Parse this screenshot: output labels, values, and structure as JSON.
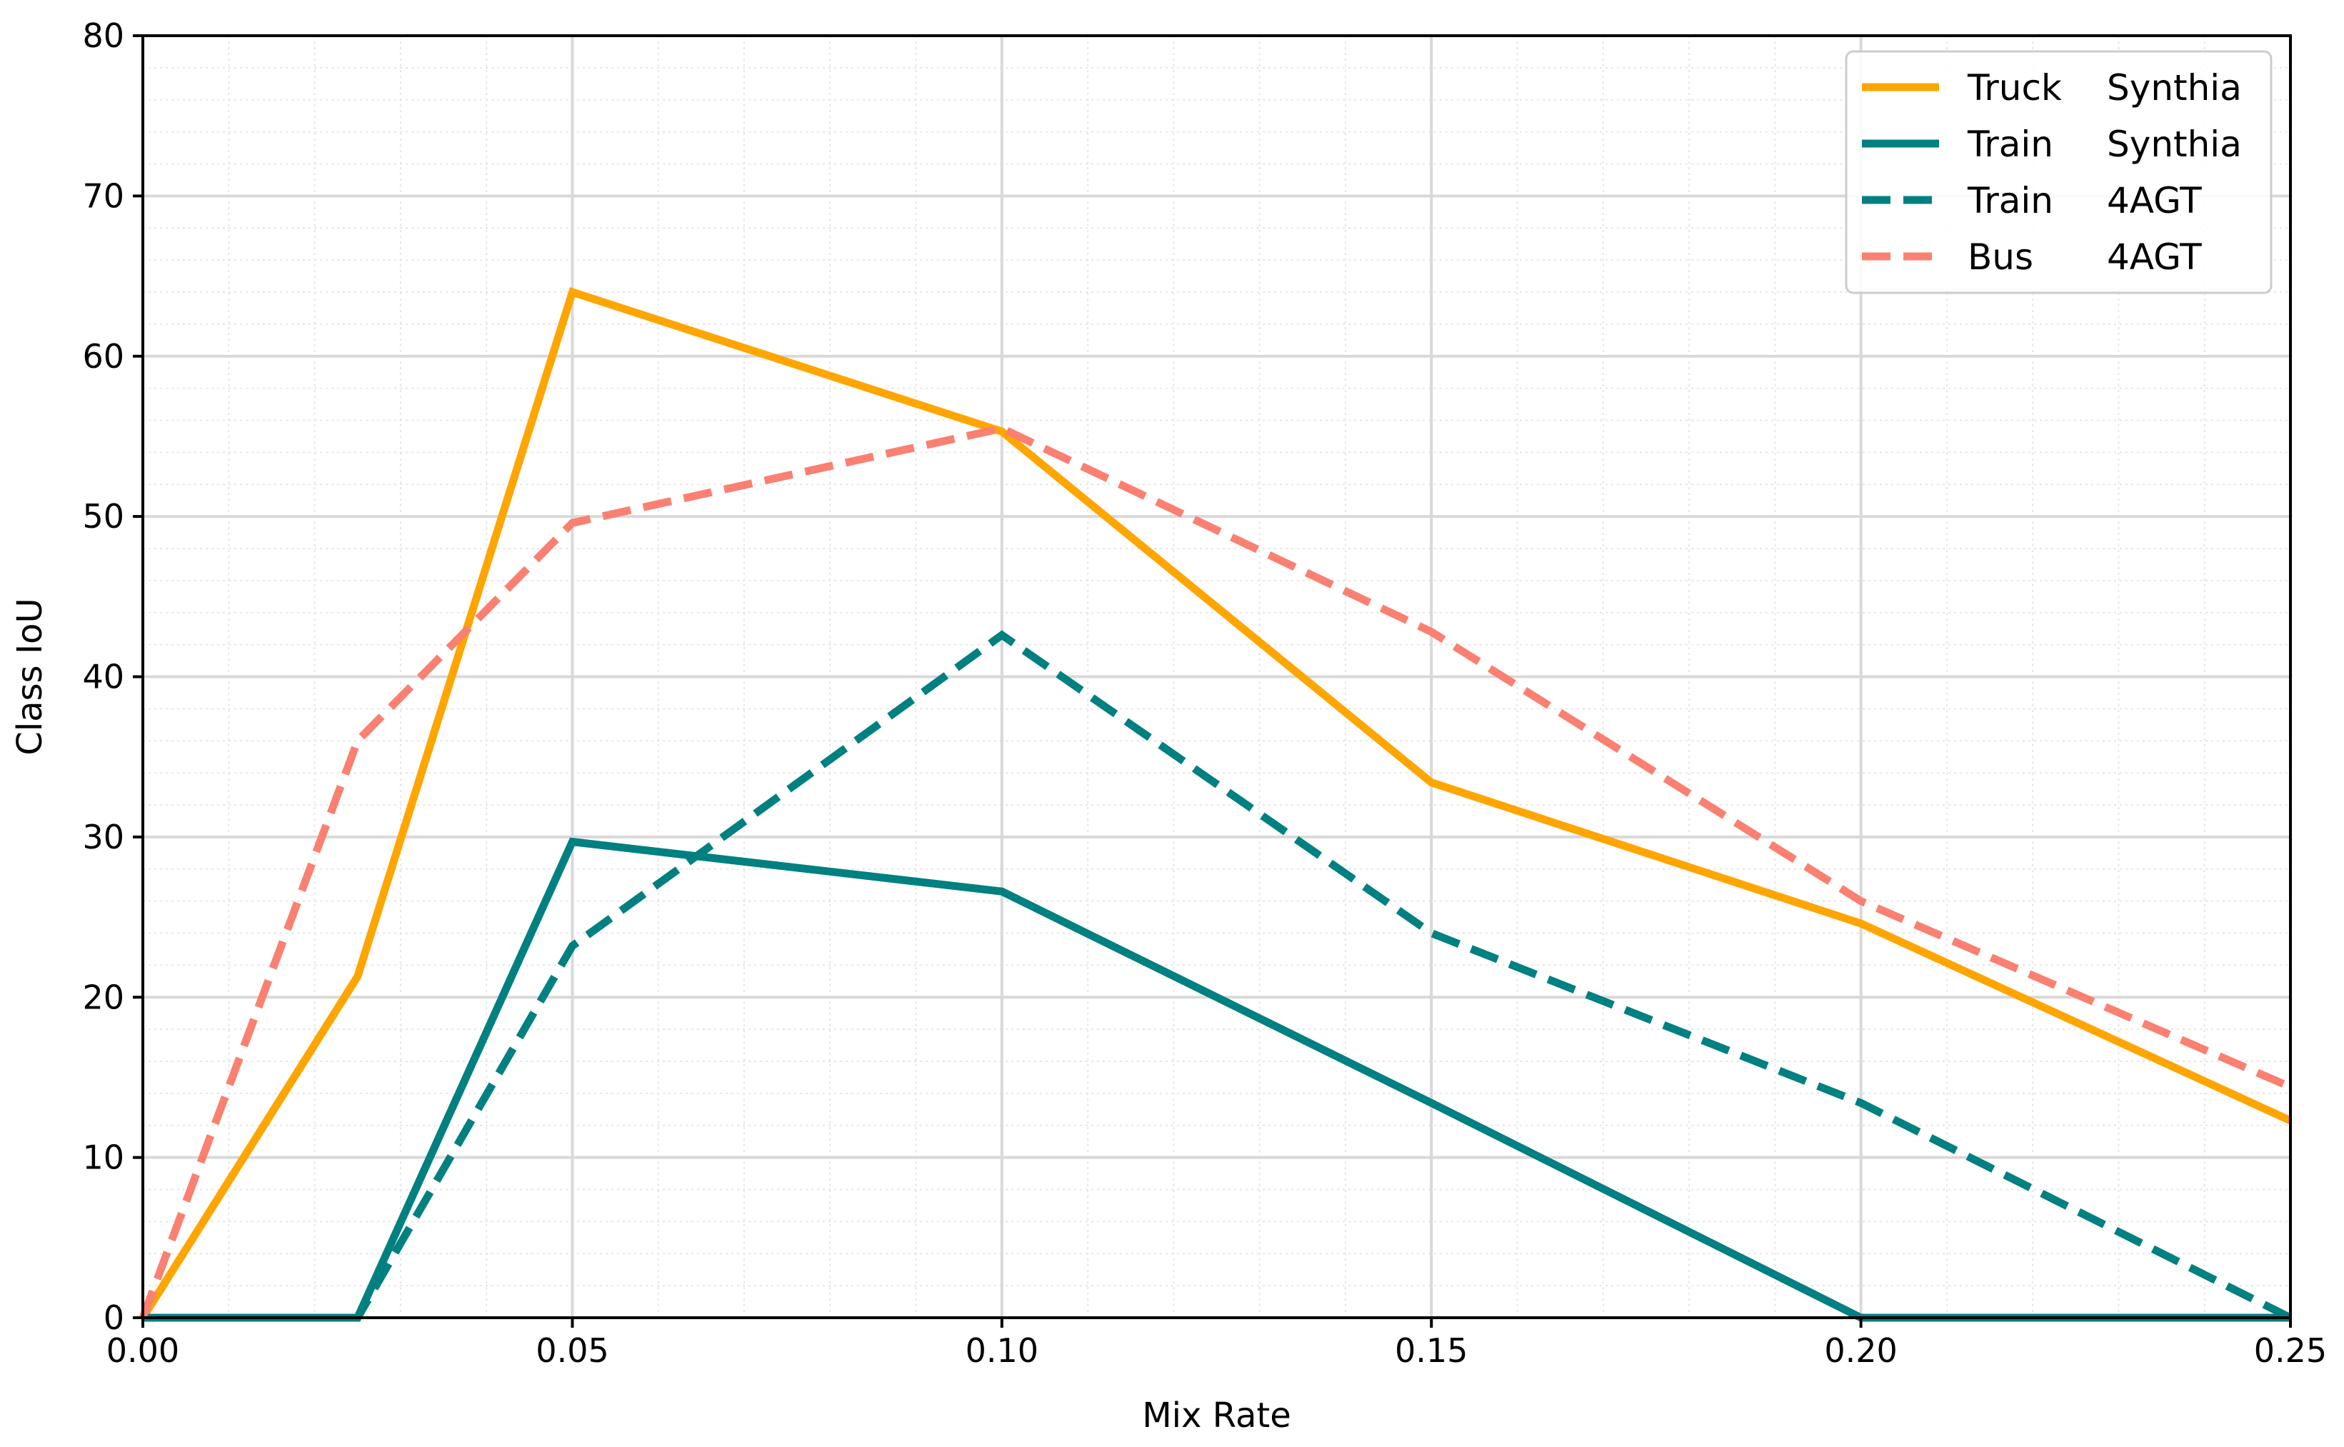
{
  "chart_data": {
    "type": "line",
    "xlabel": "Mix Rate",
    "ylabel": "Class IoU",
    "xlim": [
      0.0,
      0.25
    ],
    "ylim": [
      0,
      80
    ],
    "xticks": [
      "0.00",
      "0.05",
      "0.10",
      "0.15",
      "0.20",
      "0.25"
    ],
    "yticks": [
      "0",
      "10",
      "20",
      "30",
      "40",
      "50",
      "60",
      "70",
      "80"
    ],
    "x": [
      0.0,
      0.025,
      0.05,
      0.1,
      0.15,
      0.2,
      0.25
    ],
    "grid": true,
    "legend_position": "top-right",
    "series": [
      {
        "name": "Truck",
        "dataset": "Synthia",
        "color": "#FFA500",
        "style": "solid",
        "values": [
          0.0,
          21.3,
          64.0,
          55.3,
          33.4,
          24.6,
          12.3
        ]
      },
      {
        "name": "Train",
        "dataset": "Synthia",
        "color": "#008080",
        "style": "solid",
        "values": [
          0.0,
          0.0,
          29.7,
          26.6,
          13.4,
          0.0,
          0.0
        ]
      },
      {
        "name": "Train",
        "dataset": "4AGT",
        "color": "#008080",
        "style": "dashed",
        "values": [
          0.0,
          0.0,
          23.2,
          42.6,
          24.0,
          13.4,
          0.0
        ]
      },
      {
        "name": "Bus",
        "dataset": "4AGT",
        "color": "#FA8072",
        "style": "dashed",
        "values": [
          0.0,
          36.0,
          49.6,
          55.5,
          42.8,
          26.0,
          14.4
        ]
      }
    ]
  }
}
